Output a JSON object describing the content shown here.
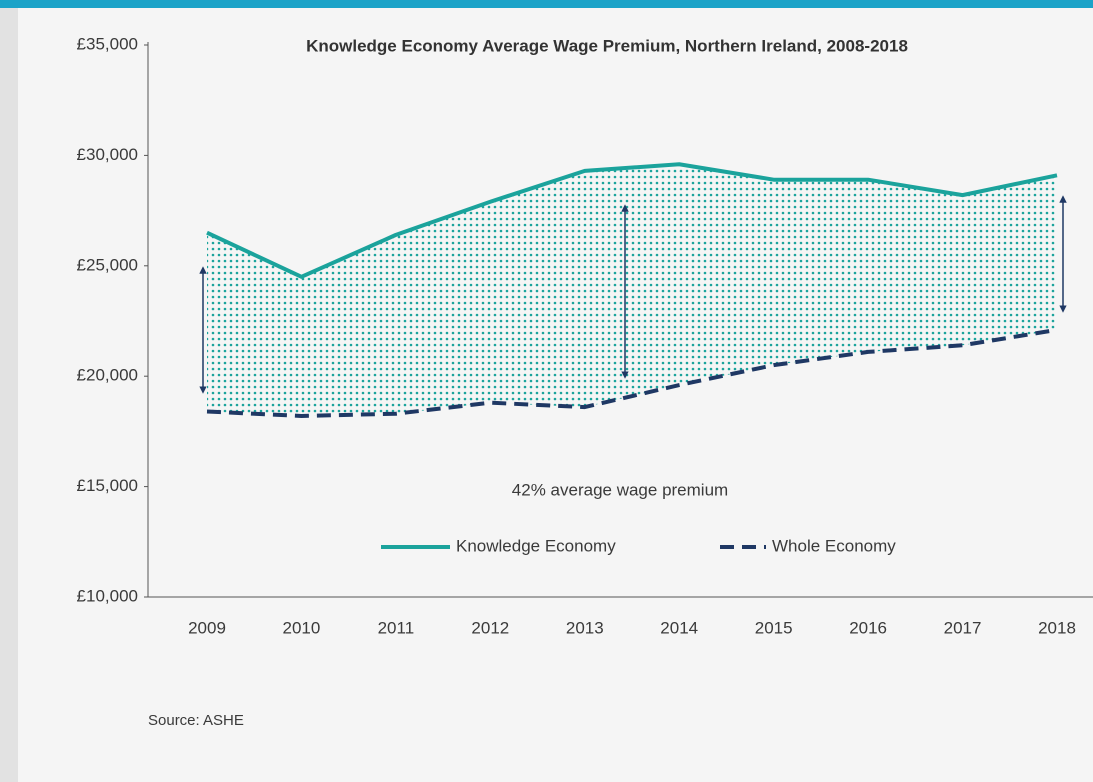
{
  "chart_data": {
    "type": "line",
    "title": "Knowledge Economy Average Wage Premium, Northern Ireland, 2008-2018",
    "categories": [
      "2009",
      "2010",
      "2011",
      "2012",
      "2013",
      "2014",
      "2015",
      "2016",
      "2017",
      "2018"
    ],
    "series": [
      {
        "name": "Knowledge Economy",
        "color": "#1ba39c",
        "line_style": "solid",
        "values": [
          26500,
          24500,
          26400,
          27900,
          29300,
          29600,
          28900,
          28900,
          28200,
          29100
        ]
      },
      {
        "name": "Whole Economy",
        "color": "#1f3864",
        "line_style": "dashed",
        "values": [
          18400,
          18200,
          18300,
          18800,
          18600,
          19600,
          20500,
          21100,
          21400,
          22100
        ]
      }
    ],
    "ylim": [
      10000,
      35000
    ],
    "yticks": [
      {
        "value": 10000,
        "label": "£10,000"
      },
      {
        "value": 15000,
        "label": "£15,000"
      },
      {
        "value": 20000,
        "label": "£20,000"
      },
      {
        "value": 25000,
        "label": "£25,000"
      },
      {
        "value": 30000,
        "label": "£30,000"
      },
      {
        "value": 35000,
        "label": "£35,000"
      }
    ],
    "annotation": "42% average wage premium",
    "source": "Source: ASHE",
    "fill_between": true
  }
}
